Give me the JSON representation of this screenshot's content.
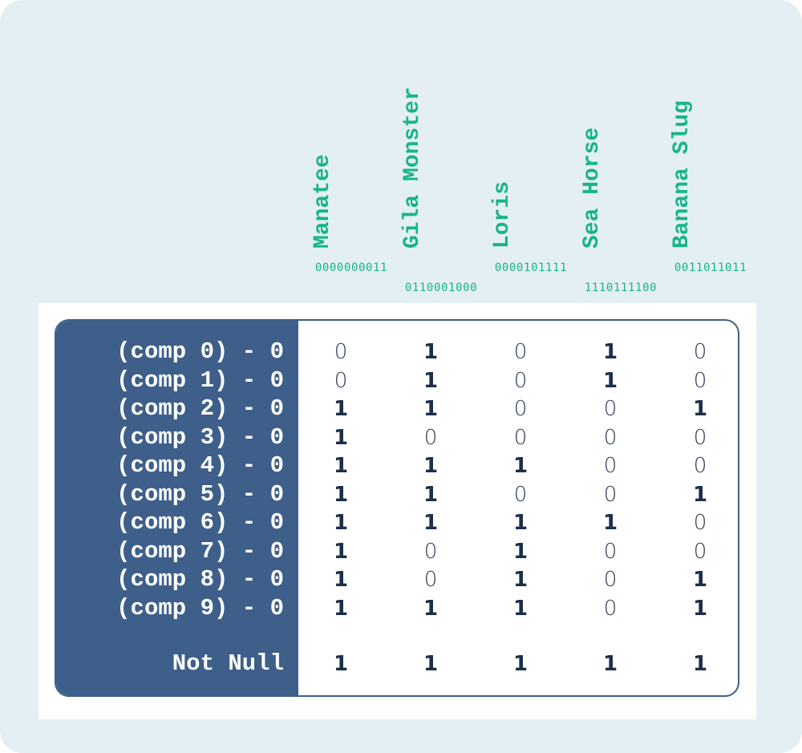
{
  "columns": [
    {
      "name": "Manatee",
      "code": "0000000011"
    },
    {
      "name": "Gila Monster",
      "code": "0110001000"
    },
    {
      "name": "Loris",
      "code": "0000101111"
    },
    {
      "name": "Sea Horse",
      "code": "1110111100"
    },
    {
      "name": "Banana Slug",
      "code": "0011011011"
    }
  ],
  "rows": [
    {
      "label": "(comp 0) - 0",
      "values": [
        "0",
        "1",
        "0",
        "1",
        "0"
      ]
    },
    {
      "label": "(comp 1) - 0",
      "values": [
        "0",
        "1",
        "0",
        "1",
        "0"
      ]
    },
    {
      "label": "(comp 2) - 0",
      "values": [
        "1",
        "1",
        "0",
        "0",
        "1"
      ]
    },
    {
      "label": "(comp 3) - 0",
      "values": [
        "1",
        "0",
        "0",
        "0",
        "0"
      ]
    },
    {
      "label": "(comp 4) - 0",
      "values": [
        "1",
        "1",
        "1",
        "0",
        "0"
      ]
    },
    {
      "label": "(comp 5) - 0",
      "values": [
        "1",
        "1",
        "0",
        "0",
        "1"
      ]
    },
    {
      "label": "(comp 6) - 0",
      "values": [
        "1",
        "1",
        "1",
        "1",
        "0"
      ]
    },
    {
      "label": "(comp 7) - 0",
      "values": [
        "1",
        "0",
        "1",
        "0",
        "0"
      ]
    },
    {
      "label": "(comp 8) - 0",
      "values": [
        "1",
        "0",
        "1",
        "0",
        "1"
      ]
    },
    {
      "label": "(comp 9) - 0",
      "values": [
        "1",
        "1",
        "1",
        "0",
        "1"
      ]
    }
  ],
  "footer": {
    "label": "Not Null",
    "values": [
      "1",
      "1",
      "1",
      "1",
      "1"
    ]
  },
  "colors": {
    "accent": "#18b48a",
    "panel": "#3d5f8a",
    "background": "#e4eff3",
    "cell_text": "#1c2e4a"
  }
}
